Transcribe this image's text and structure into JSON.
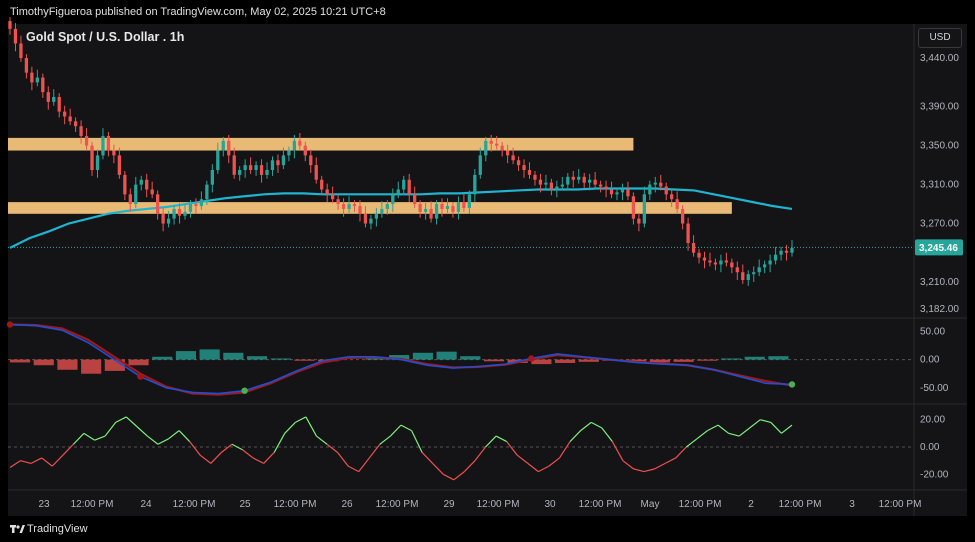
{
  "header": {
    "attribution": "TimothyFigueroa published on TradingView.com, May 02, 2025 10:21 UTC+8"
  },
  "symbol": {
    "title": "Gold Spot / U.S. Dollar . 1h"
  },
  "currency": "USD",
  "footer": {
    "brand": "TradingView"
  },
  "colors": {
    "background": "#141416",
    "up_candle": "#26a69a",
    "down_candle": "#ef5350",
    "moving_average": "#1fb5d0",
    "zone": "#ffcc80",
    "last_price_tag": "#26a69a",
    "macd_fast": "#1e4fd8",
    "macd_slow": "#a01818",
    "macd_bull_line": "#4caf50",
    "osc_up": "#7cf07c",
    "osc_down": "#f05050"
  },
  "chart_data": [
    {
      "type": "candlestick",
      "y_ticks": [
        "3,440.00",
        "3,390.00",
        "3,350.00",
        "3,310.00",
        "3,270.00",
        "3,210.00",
        "3,182.00"
      ],
      "y_range": [
        3175,
        3475
      ],
      "x_ticks": [
        "23",
        "12:00 PM",
        "24",
        "12:00 PM",
        "25",
        "12:00 PM",
        "26",
        "12:00 PM",
        "29",
        "12:00 PM",
        "30",
        "12:00 PM",
        "May",
        "12:00 PM",
        "2",
        "12:00 PM",
        "3",
        "12:00 PM"
      ],
      "last_price": "3,245.46",
      "zones": [
        {
          "low": 3345,
          "high": 3358,
          "from_bar": 0,
          "to_bar": 114
        },
        {
          "low": 3280,
          "high": 3292,
          "from_bar": 0,
          "to_bar": 132
        }
      ],
      "closes": [
        3470,
        3455,
        3440,
        3425,
        3415,
        3420,
        3405,
        3395,
        3400,
        3385,
        3380,
        3375,
        3370,
        3360,
        3350,
        3325,
        3340,
        3360,
        3345,
        3340,
        3320,
        3300,
        3290,
        3310,
        3315,
        3305,
        3300,
        3280,
        3270,
        3275,
        3285,
        3278,
        3282,
        3290,
        3288,
        3295,
        3310,
        3325,
        3345,
        3355,
        3340,
        3320,
        3325,
        3330,
        3325,
        3330,
        3320,
        3325,
        3335,
        3330,
        3340,
        3345,
        3355,
        3350,
        3340,
        3330,
        3315,
        3305,
        3300,
        3295,
        3290,
        3285,
        3290,
        3288,
        3280,
        3270,
        3275,
        3280,
        3285,
        3290,
        3300,
        3305,
        3315,
        3300,
        3290,
        3282,
        3285,
        3275,
        3290,
        3285,
        3288,
        3282,
        3292,
        3286,
        3300,
        3320,
        3340,
        3355,
        3352,
        3350,
        3345,
        3340,
        3335,
        3330,
        3325,
        3320,
        3315,
        3310,
        3312,
        3305,
        3308,
        3310,
        3318,
        3315,
        3318,
        3312,
        3315,
        3310,
        3308,
        3305,
        3300,
        3302,
        3305,
        3298,
        3275,
        3270,
        3300,
        3310,
        3312,
        3308,
        3300,
        3295,
        3285,
        3270,
        3250,
        3240,
        3235,
        3232,
        3230,
        3228,
        3232,
        3230,
        3225,
        3220,
        3212,
        3218,
        3220,
        3225,
        3228,
        3232,
        3238,
        3242,
        3240,
        3245
      ],
      "moving_average": [
        3245,
        3255,
        3262,
        3270,
        3275,
        3280,
        3283,
        3285,
        3287,
        3290,
        3293,
        3296,
        3298,
        3300,
        3301,
        3301,
        3300,
        3300,
        3300,
        3300,
        3300,
        3300,
        3301,
        3301,
        3302,
        3303,
        3304,
        3305,
        3305,
        3305,
        3306,
        3306,
        3306,
        3306,
        3305,
        3304,
        3300,
        3296,
        3292,
        3288,
        3285
      ],
      "ma_range_note": ""
    },
    {
      "type": "macd",
      "y_ticks": [
        "50.00",
        "0.00",
        "-50.00"
      ],
      "y_range": [
        -75,
        70
      ],
      "fast": [
        62,
        60,
        52,
        30,
        0,
        -30,
        -50,
        -58,
        -60,
        -55,
        -40,
        -20,
        -2,
        5,
        5,
        0,
        -10,
        -15,
        -12,
        -8,
        2,
        10,
        5,
        0,
        -5,
        -8,
        -10,
        -18,
        -30,
        -42,
        -44
      ],
      "slow": [
        62,
        61,
        55,
        35,
        5,
        -25,
        -48,
        -60,
        -62,
        -58,
        -42,
        -22,
        -5,
        3,
        4,
        1,
        -8,
        -14,
        -13,
        -9,
        0,
        8,
        4,
        0,
        -4,
        -7,
        -10,
        -18,
        -28,
        -38,
        -46
      ],
      "histogram": [
        -5,
        -10,
        -18,
        -25,
        -20,
        -10,
        5,
        15,
        18,
        12,
        6,
        2,
        -2,
        -3,
        0,
        4,
        8,
        12,
        14,
        6,
        -3,
        -6,
        -8,
        -6,
        -4,
        -2,
        -3,
        -5,
        -4,
        -2,
        2,
        5,
        6
      ]
    },
    {
      "type": "oscillator",
      "y_ticks": [
        "20.00",
        "0.00",
        "-20.00"
      ],
      "y_range": [
        -30,
        30
      ],
      "values": [
        -15,
        -10,
        -12,
        -8,
        -14,
        -6,
        2,
        10,
        5,
        8,
        18,
        22,
        15,
        8,
        2,
        6,
        12,
        4,
        -6,
        -12,
        -4,
        2,
        -2,
        -8,
        -12,
        -4,
        10,
        18,
        22,
        8,
        2,
        -4,
        -14,
        -18,
        -8,
        2,
        8,
        16,
        12,
        -4,
        -12,
        -20,
        -24,
        -18,
        -10,
        0,
        8,
        4,
        -6,
        -12,
        -18,
        -14,
        -8,
        4,
        12,
        18,
        14,
        4,
        -10,
        -16,
        -18,
        -16,
        -12,
        -8,
        0,
        6,
        12,
        16,
        10,
        8,
        14,
        20,
        18,
        10,
        16
      ]
    }
  ]
}
